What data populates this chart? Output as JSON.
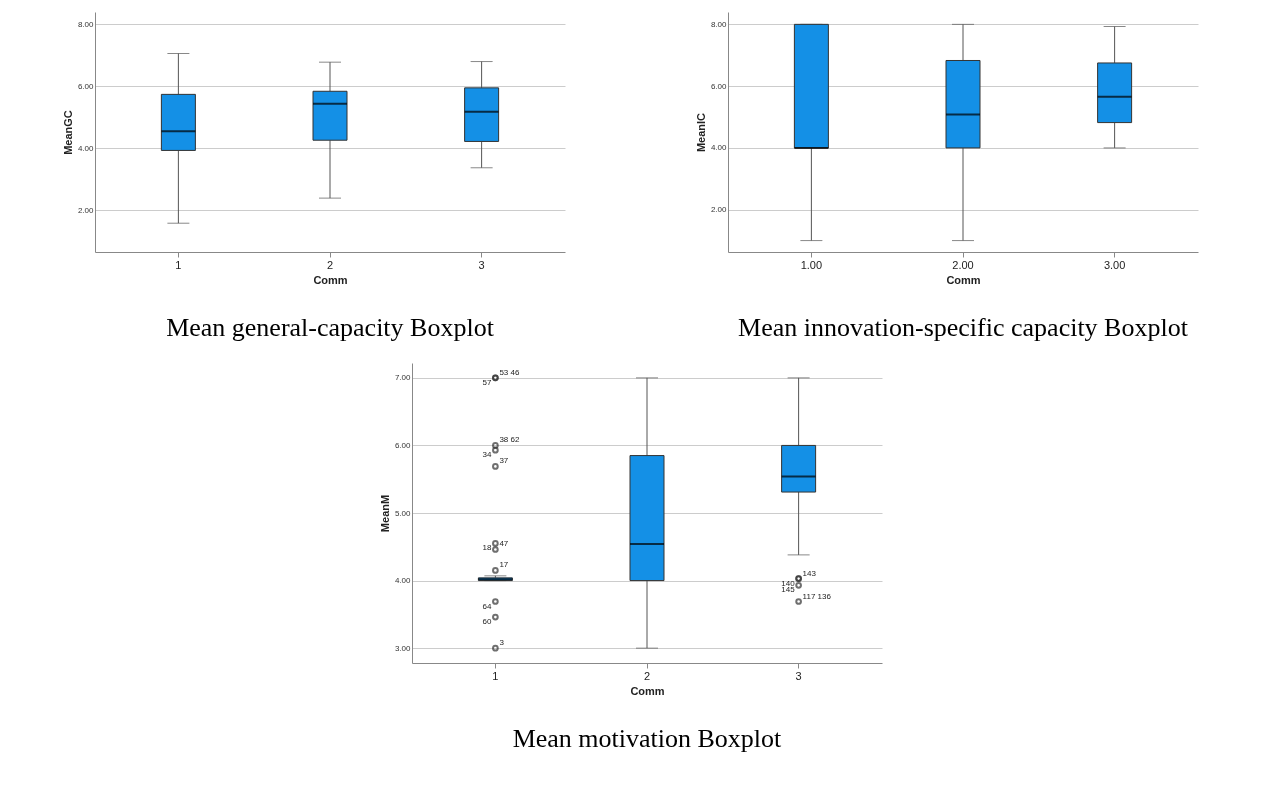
{
  "chart_data": [
    {
      "type": "box",
      "title": "Mean general-capacity Boxplot",
      "xlabel": "Comm",
      "ylabel": "MeanGC",
      "categories": [
        "1",
        "2",
        "3"
      ],
      "ylim": [
        0.65,
        8.4
      ],
      "yticks": [
        {
          "value": 2,
          "label": "2.00"
        },
        {
          "value": 4,
          "label": "4.00"
        },
        {
          "value": 6,
          "label": "6.00"
        },
        {
          "value": 8,
          "label": "8.00"
        }
      ],
      "grid": "y",
      "series": [
        {
          "color": "#1490e6",
          "boxes": [
            {
              "low": 1.58,
              "q1": 3.93,
              "median": 4.55,
              "q3": 5.74,
              "high": 7.06
            },
            {
              "low": 2.39,
              "q1": 4.26,
              "median": 5.44,
              "q3": 5.84,
              "high": 6.78
            },
            {
              "low": 3.37,
              "q1": 4.22,
              "median": 5.18,
              "q3": 5.95,
              "high": 6.8
            }
          ]
        }
      ]
    },
    {
      "type": "box",
      "title": "Mean innovation-specific capacity Boxplot",
      "xlabel": "Comm",
      "ylabel": "MeanIC",
      "categories": [
        "1.00",
        "2.00",
        "3.00"
      ],
      "ylim": [
        0.63,
        8.4
      ],
      "yticks": [
        {
          "value": 2,
          "label": "2.00"
        },
        {
          "value": 4,
          "label": "4.00"
        },
        {
          "value": 6,
          "label": "6.00"
        },
        {
          "value": 8,
          "label": "8.00"
        }
      ],
      "grid": "y",
      "series": [
        {
          "color": "#1490e6",
          "boxes": [
            {
              "low": 1,
              "q1": 4,
              "median": 4,
              "q3": 8,
              "high": 8
            },
            {
              "low": 1,
              "q1": 4,
              "median": 5.08,
              "q3": 6.83,
              "high": 8
            },
            {
              "low": 4,
              "q1": 4.82,
              "median": 5.66,
              "q3": 6.75,
              "high": 7.93
            }
          ]
        }
      ]
    },
    {
      "type": "box",
      "title": "Mean motivation Boxplot",
      "xlabel": "Comm",
      "ylabel": "MeanM",
      "categories": [
        "1",
        "2",
        "3"
      ],
      "ylim": [
        2.78,
        7.22
      ],
      "yticks": [
        {
          "value": 3,
          "label": "3.00"
        },
        {
          "value": 4,
          "label": "4.00"
        },
        {
          "value": 5,
          "label": "5.00"
        },
        {
          "value": 6,
          "label": "6.00"
        },
        {
          "value": 7,
          "label": "7.00"
        }
      ],
      "grid": "y",
      "series": [
        {
          "color": "#1490e6",
          "boxes": [
            {
              "low": 4,
              "q1": 4,
              "median": 4.02,
              "q3": 4.04,
              "high": 4.07,
              "outliers": [
                7,
                7,
                6,
                5.93,
                5.69,
                4.55,
                4.46,
                3.46,
                4.15,
                3.69,
                3
              ]
            },
            {
              "low": 3,
              "q1": 4,
              "median": 4.54,
              "q3": 5.85,
              "high": 7
            },
            {
              "low": 4.38,
              "q1": 5.31,
              "median": 5.54,
              "q3": 6,
              "high": 7,
              "outliers": [
                4.03,
                4.03,
                3.93,
                3.69
              ]
            }
          ]
        }
      ],
      "annotations": [
        "53 46",
        "57",
        "38 62",
        "34",
        "37",
        "18",
        "47",
        "60",
        "17",
        "64",
        "3",
        "140",
        "143",
        "145",
        "117 136"
      ]
    }
  ]
}
